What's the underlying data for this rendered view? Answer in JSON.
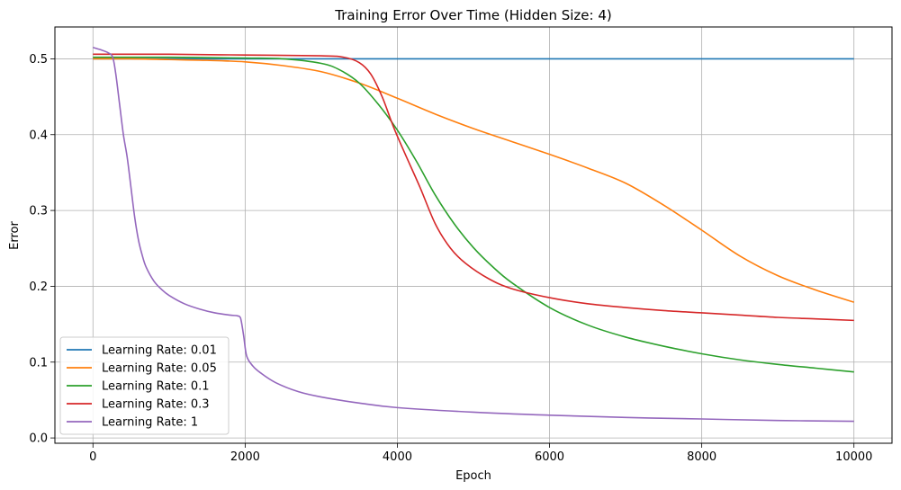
{
  "chart_data": {
    "type": "line",
    "title": "Training Error Over Time (Hidden Size: 4)",
    "xlabel": "Epoch",
    "ylabel": "Error",
    "xlim": [
      -500,
      10500
    ],
    "ylim": [
      -0.007,
      0.542
    ],
    "xticks": [
      0,
      2000,
      4000,
      6000,
      8000,
      10000
    ],
    "xtick_labels": [
      "0",
      "2000",
      "4000",
      "6000",
      "8000",
      "10000"
    ],
    "yticks": [
      0.0,
      0.1,
      0.2,
      0.3,
      0.4,
      0.5
    ],
    "ytick_labels": [
      "0.0",
      "0.1",
      "0.2",
      "0.3",
      "0.4",
      "0.5"
    ],
    "grid": true,
    "legend_position": "lower-left",
    "series": [
      {
        "name": "Learning Rate: 0.01",
        "color": "#1f77b4",
        "x": [
          0,
          1000,
          2000,
          3000,
          4000,
          5000,
          6000,
          7000,
          8000,
          9000,
          10000
        ],
        "y": [
          0.5,
          0.5,
          0.5,
          0.5,
          0.5,
          0.5,
          0.5,
          0.5,
          0.5,
          0.5,
          0.5
        ]
      },
      {
        "name": "Learning Rate: 0.05",
        "color": "#ff7f0e",
        "x": [
          0,
          500,
          1000,
          1500,
          2000,
          2500,
          3000,
          3500,
          4000,
          4500,
          5000,
          5500,
          6000,
          6500,
          7000,
          7500,
          8000,
          8500,
          9000,
          9500,
          10000
        ],
        "y": [
          0.5,
          0.5,
          0.499,
          0.498,
          0.496,
          0.491,
          0.483,
          0.468,
          0.448,
          0.427,
          0.408,
          0.391,
          0.374,
          0.356,
          0.336,
          0.307,
          0.274,
          0.24,
          0.214,
          0.195,
          0.179
        ]
      },
      {
        "name": "Learning Rate: 0.1",
        "color": "#2ca02c",
        "x": [
          0,
          1000,
          2000,
          2500,
          3000,
          3250,
          3500,
          3750,
          4000,
          4250,
          4500,
          4750,
          5000,
          5250,
          5500,
          6000,
          6500,
          7000,
          7500,
          8000,
          8500,
          9000,
          9500,
          10000
        ],
        "y": [
          0.502,
          0.502,
          0.501,
          0.5,
          0.494,
          0.485,
          0.468,
          0.44,
          0.406,
          0.365,
          0.32,
          0.282,
          0.251,
          0.226,
          0.205,
          0.172,
          0.149,
          0.133,
          0.121,
          0.111,
          0.103,
          0.097,
          0.092,
          0.087
        ]
      },
      {
        "name": "Learning Rate: 0.3",
        "color": "#d62728",
        "x": [
          0,
          1000,
          2000,
          3000,
          3300,
          3500,
          3650,
          3800,
          3950,
          4100,
          4300,
          4500,
          4700,
          4900,
          5200,
          5500,
          6000,
          6500,
          7000,
          7500,
          8000,
          8500,
          9000,
          9500,
          10000
        ],
        "y": [
          0.506,
          0.506,
          0.505,
          0.504,
          0.502,
          0.495,
          0.48,
          0.45,
          0.41,
          0.375,
          0.33,
          0.282,
          0.25,
          0.23,
          0.21,
          0.197,
          0.185,
          0.177,
          0.172,
          0.168,
          0.165,
          0.162,
          0.159,
          0.157,
          0.155
        ]
      },
      {
        "name": "Learning Rate: 1",
        "color": "#9467bd",
        "x": [
          0,
          100,
          200,
          260,
          300,
          350,
          400,
          450,
          500,
          550,
          600,
          650,
          700,
          800,
          900,
          1000,
          1200,
          1400,
          1600,
          1800,
          1900,
          1940,
          1980,
          2020,
          2100,
          2200,
          2400,
          2700,
          3000,
          3500,
          4000,
          5000,
          6000,
          7000,
          8000,
          9000,
          10000
        ],
        "y": [
          0.515,
          0.512,
          0.508,
          0.502,
          0.48,
          0.44,
          0.4,
          0.37,
          0.33,
          0.29,
          0.26,
          0.24,
          0.225,
          0.207,
          0.196,
          0.188,
          0.177,
          0.17,
          0.165,
          0.162,
          0.161,
          0.158,
          0.135,
          0.108,
          0.095,
          0.086,
          0.073,
          0.061,
          0.054,
          0.046,
          0.04,
          0.034,
          0.03,
          0.027,
          0.025,
          0.023,
          0.022
        ]
      }
    ]
  }
}
